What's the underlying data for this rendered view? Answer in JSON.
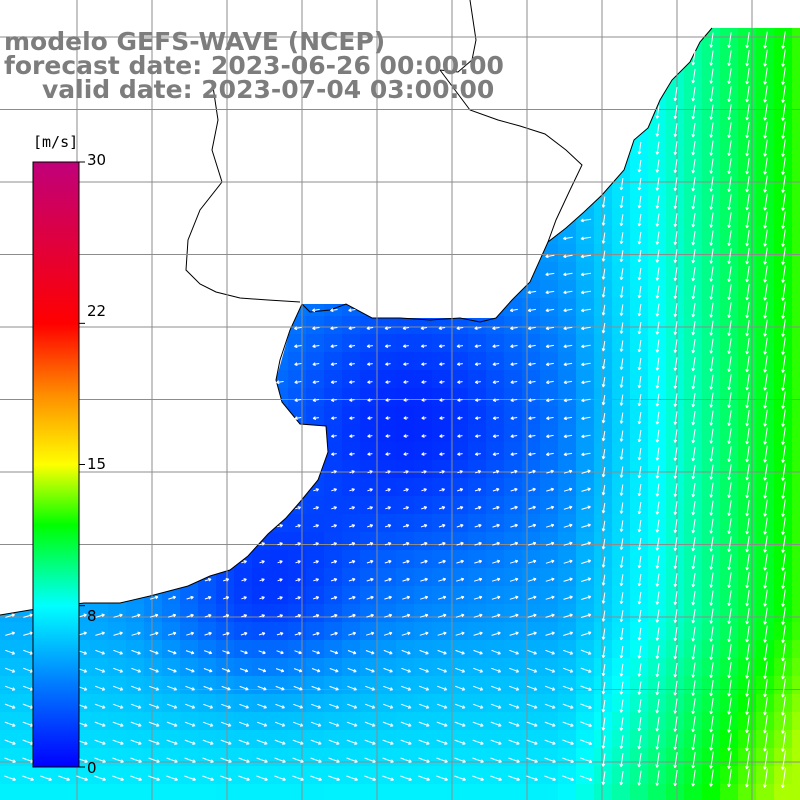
{
  "title": {
    "line1": "modelo GEFS-WAVE (NCEP)",
    "line2": "forecast date: 2023-06-26 00:00:00",
    "line3": "valid date: 2023-07-04 03:00:00"
  },
  "colorbar": {
    "unit": "[m/s]",
    "ticks": [
      "30",
      "22",
      "15",
      "8",
      "0"
    ],
    "tick_values": [
      30,
      22,
      15,
      8,
      0
    ],
    "min": 0,
    "max": 30,
    "stops": [
      {
        "v": 0,
        "color": "#0000ff"
      },
      {
        "v": 4,
        "color": "#0078ff"
      },
      {
        "v": 8,
        "color": "#00ffff"
      },
      {
        "v": 12,
        "color": "#00ff00"
      },
      {
        "v": 15,
        "color": "#ffff00"
      },
      {
        "v": 18.5,
        "color": "#ff8c00"
      },
      {
        "v": 22,
        "color": "#ff0000"
      },
      {
        "v": 30,
        "color": "#c0007a"
      }
    ]
  },
  "colors": {
    "land": "#ffffff",
    "coastline": "#000000",
    "grid": "#8c8c8c",
    "arrow": "#ffffff",
    "title": "#7d7d7d"
  },
  "map": {
    "variable": "wind speed",
    "arrows": "white wind vectors"
  }
}
